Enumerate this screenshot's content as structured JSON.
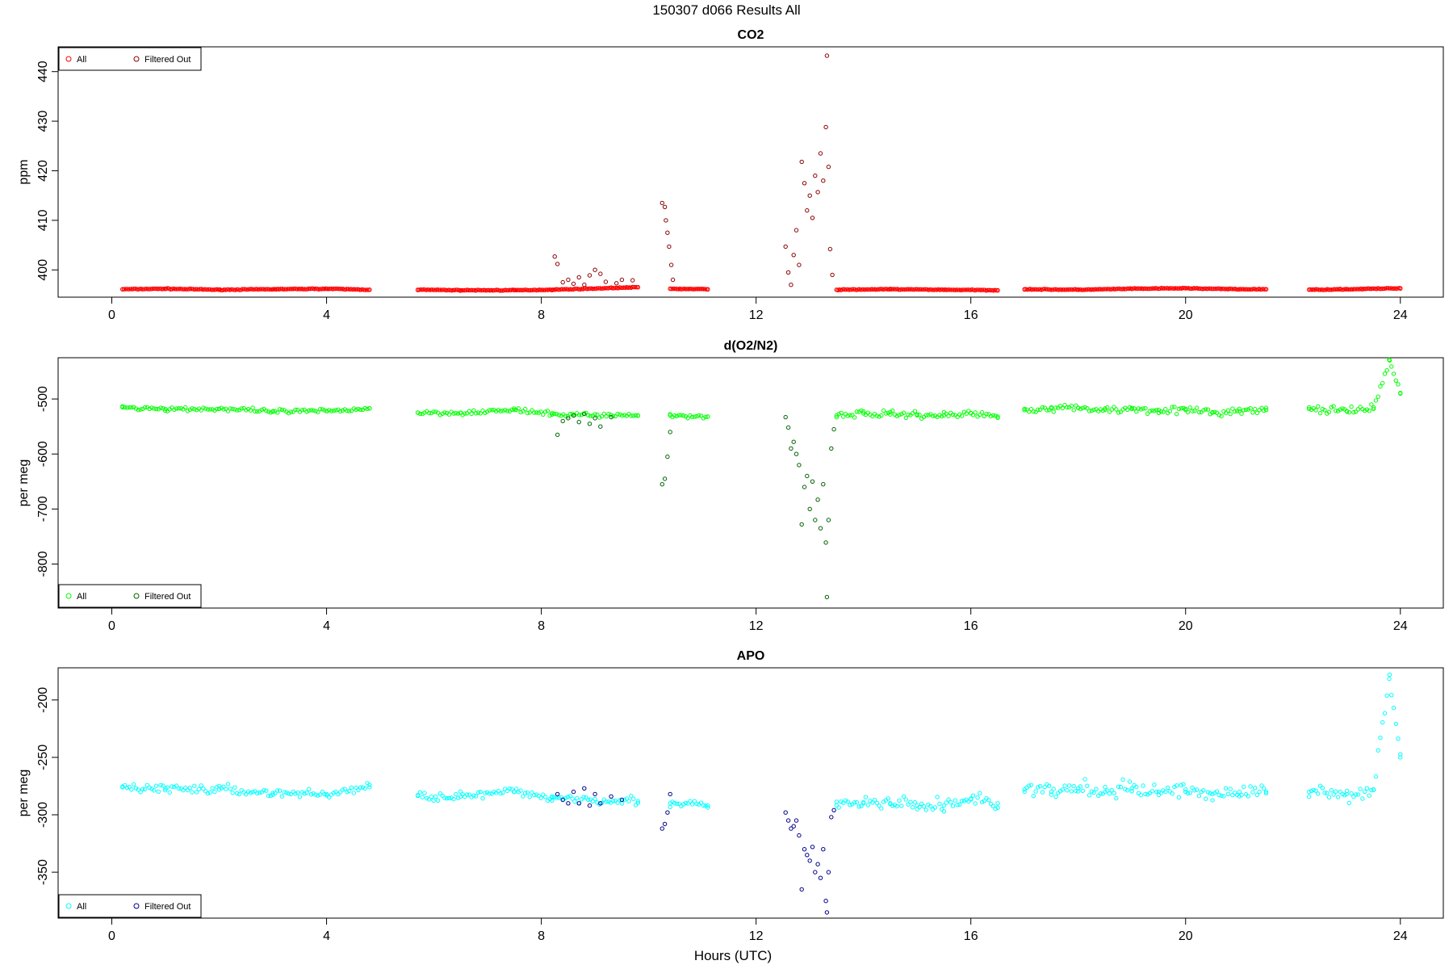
{
  "figure": {
    "title": "150307   d066   Results All",
    "xlabel": "Hours (UTC)"
  },
  "chart_data": [
    {
      "type": "scatter",
      "title": "CO2",
      "xlabel": "",
      "ylabel": "ppm",
      "xlim": [
        -1.0,
        24.8
      ],
      "ylim": [
        394.5,
        445.0
      ],
      "xticks": [
        0,
        4,
        8,
        12,
        16,
        20,
        24
      ],
      "yticks": [
        400,
        410,
        420,
        430,
        440
      ],
      "grid": false,
      "legend_position": "top-left",
      "colors": {
        "all": "#ff0000",
        "filtered": "#8b0000"
      },
      "segments": [
        [
          0.2,
          4.8
        ],
        [
          5.7,
          8.2
        ],
        [
          8.2,
          9.8
        ],
        [
          10.4,
          11.1
        ],
        [
          13.5,
          16.5
        ],
        [
          17.0,
          21.5
        ],
        [
          22.3,
          24.0
        ]
      ],
      "series": [
        {
          "name": "All",
          "values": [
            [
              0.2,
              396.1
            ],
            [
              1.0,
              396.2
            ],
            [
              2.0,
              396.0
            ],
            [
              3.0,
              396.1
            ],
            [
              4.0,
              396.2
            ],
            [
              4.8,
              396.0
            ],
            [
              5.7,
              396.0
            ],
            [
              6.5,
              395.9
            ],
            [
              7.5,
              395.9
            ],
            [
              8.2,
              396.0
            ],
            [
              9.8,
              396.5
            ],
            [
              10.4,
              396.2
            ],
            [
              11.1,
              396.1
            ],
            [
              13.5,
              396.0
            ],
            [
              14.5,
              396.1
            ],
            [
              15.5,
              396.0
            ],
            [
              16.5,
              395.9
            ],
            [
              17.0,
              396.1
            ],
            [
              18.0,
              396.0
            ],
            [
              19.0,
              396.2
            ],
            [
              20.0,
              396.3
            ],
            [
              21.0,
              396.1
            ],
            [
              21.5,
              396.1
            ],
            [
              22.3,
              396.0
            ],
            [
              23.0,
              396.1
            ],
            [
              24.0,
              396.3
            ]
          ]
        },
        {
          "name": "Filtered Out",
          "values": [
            [
              8.25,
              402.7
            ],
            [
              8.3,
              401.2
            ],
            [
              8.4,
              397.5
            ],
            [
              8.5,
              398.0
            ],
            [
              8.6,
              397.2
            ],
            [
              8.7,
              398.5
            ],
            [
              8.8,
              397.0
            ],
            [
              8.9,
              398.9
            ],
            [
              9.0,
              400.0
            ],
            [
              9.1,
              399.2
            ],
            [
              9.2,
              397.6
            ],
            [
              9.4,
              397.3
            ],
            [
              9.5,
              398.0
            ],
            [
              9.7,
              397.9
            ],
            [
              10.25,
              413.5
            ],
            [
              10.3,
              412.7
            ],
            [
              10.32,
              410.0
            ],
            [
              10.35,
              407.5
            ],
            [
              10.38,
              404.7
            ],
            [
              10.42,
              401.0
            ],
            [
              10.45,
              398.0
            ],
            [
              12.55,
              404.7
            ],
            [
              12.6,
              399.5
            ],
            [
              12.65,
              397.0
            ],
            [
              12.7,
              403.0
            ],
            [
              12.75,
              408.0
            ],
            [
              12.8,
              401.0
            ],
            [
              12.85,
              421.8
            ],
            [
              12.9,
              417.5
            ],
            [
              12.95,
              412.0
            ],
            [
              13.0,
              415.0
            ],
            [
              13.05,
              410.5
            ],
            [
              13.1,
              419.0
            ],
            [
              13.15,
              415.7
            ],
            [
              13.2,
              423.5
            ],
            [
              13.25,
              418.0
            ],
            [
              13.3,
              428.8
            ],
            [
              13.32,
              443.2
            ],
            [
              13.35,
              420.8
            ],
            [
              13.38,
              404.2
            ],
            [
              13.42,
              399.0
            ]
          ]
        }
      ]
    },
    {
      "type": "scatter",
      "title": "d(O2/N2)",
      "xlabel": "",
      "ylabel": "per meg",
      "xlim": [
        -1.0,
        24.8
      ],
      "ylim": [
        -880,
        -425
      ],
      "xticks": [
        0,
        4,
        8,
        12,
        16,
        20,
        24
      ],
      "yticks": [
        -800,
        -700,
        -600,
        -500
      ],
      "grid": false,
      "legend_position": "bottom-left",
      "colors": {
        "all": "#00ff00",
        "filtered": "#006400"
      },
      "segments": [
        [
          0.2,
          4.8
        ],
        [
          5.7,
          8.2
        ],
        [
          8.2,
          9.8
        ],
        [
          10.4,
          11.1
        ],
        [
          13.5,
          16.5
        ],
        [
          17.0,
          21.5
        ],
        [
          22.3,
          24.0
        ]
      ],
      "series": [
        {
          "name": "All",
          "values": [
            [
              0.2,
              -515
            ],
            [
              1.0,
              -518
            ],
            [
              2.0,
              -518
            ],
            [
              3.0,
              -523
            ],
            [
              4.0,
              -522
            ],
            [
              4.8,
              -517
            ],
            [
              5.7,
              -525
            ],
            [
              6.5,
              -525
            ],
            [
              7.5,
              -520
            ],
            [
              8.2,
              -528
            ],
            [
              9.8,
              -530
            ],
            [
              10.4,
              -530
            ],
            [
              11.1,
              -532
            ],
            [
              13.5,
              -530
            ],
            [
              14.0,
              -526
            ],
            [
              14.5,
              -528
            ],
            [
              15.0,
              -528
            ],
            [
              15.5,
              -530
            ],
            [
              16.0,
              -526
            ],
            [
              16.5,
              -532
            ],
            [
              17.0,
              -518
            ],
            [
              17.5,
              -517
            ],
            [
              18.0,
              -516
            ],
            [
              18.5,
              -520
            ],
            [
              19.0,
              -518
            ],
            [
              19.5,
              -520
            ],
            [
              20.0,
              -520
            ],
            [
              20.5,
              -525
            ],
            [
              21.0,
              -522
            ],
            [
              21.5,
              -520
            ],
            [
              22.3,
              -518
            ],
            [
              23.0,
              -522
            ],
            [
              23.5,
              -518
            ],
            [
              23.8,
              -430
            ],
            [
              24.0,
              -490
            ]
          ]
        },
        {
          "name": "Filtered Out",
          "values": [
            [
              8.3,
              -565
            ],
            [
              8.4,
              -540
            ],
            [
              8.5,
              -535
            ],
            [
              8.6,
              -530
            ],
            [
              8.7,
              -542
            ],
            [
              8.8,
              -527
            ],
            [
              8.9,
              -545
            ],
            [
              9.0,
              -535
            ],
            [
              9.1,
              -550
            ],
            [
              9.3,
              -533
            ],
            [
              10.25,
              -655
            ],
            [
              10.3,
              -645
            ],
            [
              10.35,
              -605
            ],
            [
              10.4,
              -560
            ],
            [
              12.55,
              -533
            ],
            [
              12.6,
              -552
            ],
            [
              12.65,
              -590
            ],
            [
              12.7,
              -578
            ],
            [
              12.75,
              -600
            ],
            [
              12.8,
              -620
            ],
            [
              12.85,
              -728
            ],
            [
              12.9,
              -660
            ],
            [
              12.95,
              -640
            ],
            [
              13.0,
              -700
            ],
            [
              13.05,
              -650
            ],
            [
              13.1,
              -720
            ],
            [
              13.15,
              -683
            ],
            [
              13.2,
              -735
            ],
            [
              13.25,
              -655
            ],
            [
              13.3,
              -761
            ],
            [
              13.32,
              -860
            ],
            [
              13.35,
              -720
            ],
            [
              13.4,
              -590
            ],
            [
              13.45,
              -555
            ]
          ]
        }
      ]
    },
    {
      "type": "scatter",
      "title": "APO",
      "xlabel": "Hours (UTC)",
      "ylabel": "per meg",
      "xlim": [
        -1.0,
        24.8
      ],
      "ylim": [
        -390,
        -172
      ],
      "xticks": [
        0,
        4,
        8,
        12,
        16,
        20,
        24
      ],
      "yticks": [
        -350,
        -300,
        -250,
        -200
      ],
      "grid": false,
      "legend_position": "bottom-left",
      "colors": {
        "all": "#00ffff",
        "filtered": "#00008b"
      },
      "segments": [
        [
          0.2,
          4.8
        ],
        [
          5.7,
          8.2
        ],
        [
          8.2,
          9.8
        ],
        [
          10.4,
          11.1
        ],
        [
          13.5,
          16.5
        ],
        [
          17.0,
          21.5
        ],
        [
          22.3,
          24.0
        ]
      ],
      "series": [
        {
          "name": "All",
          "values": [
            [
              0.2,
              -276
            ],
            [
              1.0,
              -277
            ],
            [
              2.0,
              -278
            ],
            [
              3.0,
              -281
            ],
            [
              4.0,
              -282
            ],
            [
              4.8,
              -276
            ],
            [
              5.7,
              -283
            ],
            [
              6.5,
              -284
            ],
            [
              7.5,
              -280
            ],
            [
              8.2,
              -285
            ],
            [
              9.8,
              -288
            ],
            [
              10.4,
              -290
            ],
            [
              11.1,
              -292
            ],
            [
              13.5,
              -292
            ],
            [
              14.0,
              -290
            ],
            [
              14.5,
              -290
            ],
            [
              15.0,
              -292
            ],
            [
              15.5,
              -292
            ],
            [
              16.0,
              -286
            ],
            [
              16.5,
              -290
            ],
            [
              17.0,
              -278
            ],
            [
              17.5,
              -280
            ],
            [
              18.0,
              -277
            ],
            [
              18.5,
              -280
            ],
            [
              19.0,
              -277
            ],
            [
              19.5,
              -280
            ],
            [
              20.0,
              -278
            ],
            [
              20.5,
              -282
            ],
            [
              21.0,
              -280
            ],
            [
              21.5,
              -280
            ],
            [
              22.3,
              -280
            ],
            [
              23.0,
              -282
            ],
            [
              23.5,
              -278
            ],
            [
              23.8,
              -178
            ],
            [
              24.0,
              -250
            ]
          ]
        },
        {
          "name": "Filtered Out",
          "values": [
            [
              8.3,
              -282
            ],
            [
              8.4,
              -287
            ],
            [
              8.5,
              -290
            ],
            [
              8.6,
              -280
            ],
            [
              8.7,
              -290
            ],
            [
              8.8,
              -277
            ],
            [
              8.9,
              -292
            ],
            [
              9.0,
              -282
            ],
            [
              9.1,
              -290
            ],
            [
              9.3,
              -284
            ],
            [
              9.5,
              -287
            ],
            [
              10.25,
              -312
            ],
            [
              10.3,
              -308
            ],
            [
              10.35,
              -298
            ],
            [
              10.4,
              -282
            ],
            [
              12.55,
              -298
            ],
            [
              12.6,
              -305
            ],
            [
              12.65,
              -312
            ],
            [
              12.7,
              -310
            ],
            [
              12.75,
              -305
            ],
            [
              12.8,
              -318
            ],
            [
              12.85,
              -365
            ],
            [
              12.9,
              -330
            ],
            [
              12.95,
              -335
            ],
            [
              13.0,
              -340
            ],
            [
              13.05,
              -328
            ],
            [
              13.1,
              -350
            ],
            [
              13.15,
              -343
            ],
            [
              13.2,
              -355
            ],
            [
              13.25,
              -330
            ],
            [
              13.3,
              -375
            ],
            [
              13.32,
              -385
            ],
            [
              13.35,
              -350
            ],
            [
              13.4,
              -302
            ],
            [
              13.45,
              -296
            ]
          ]
        }
      ]
    }
  ]
}
